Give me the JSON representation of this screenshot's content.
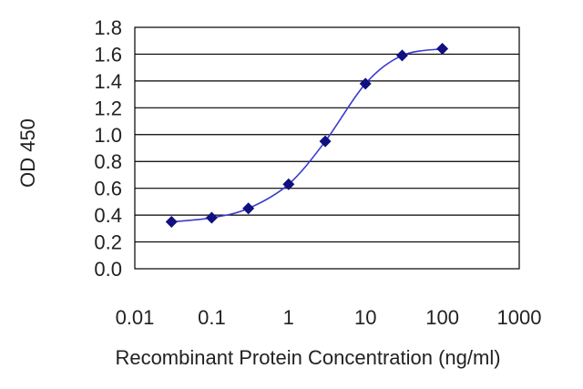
{
  "chart_data": {
    "type": "line",
    "title": "",
    "xlabel": "Recombinant Protein Concentration (ng/ml)",
    "ylabel": "OD 450",
    "x_scale": "log",
    "xlim": [
      0.01,
      1000
    ],
    "ylim": [
      0.0,
      1.8
    ],
    "x_ticks": [
      "0.01",
      "0.1",
      "1",
      "10",
      "100",
      "1000"
    ],
    "y_ticks": [
      "0.0",
      "0.2",
      "0.4",
      "0.6",
      "0.8",
      "1.0",
      "1.2",
      "1.4",
      "1.6",
      "1.8"
    ],
    "grid": true,
    "series": [
      {
        "x": [
          0.03,
          0.1,
          0.3,
          1,
          3,
          10,
          30,
          100
        ],
        "y": [
          0.35,
          0.38,
          0.45,
          0.63,
          0.95,
          1.38,
          1.59,
          1.64
        ]
      }
    ],
    "colors": {
      "marker": "#101080",
      "curve": "#3a3ad0",
      "grid": "#000000"
    }
  }
}
